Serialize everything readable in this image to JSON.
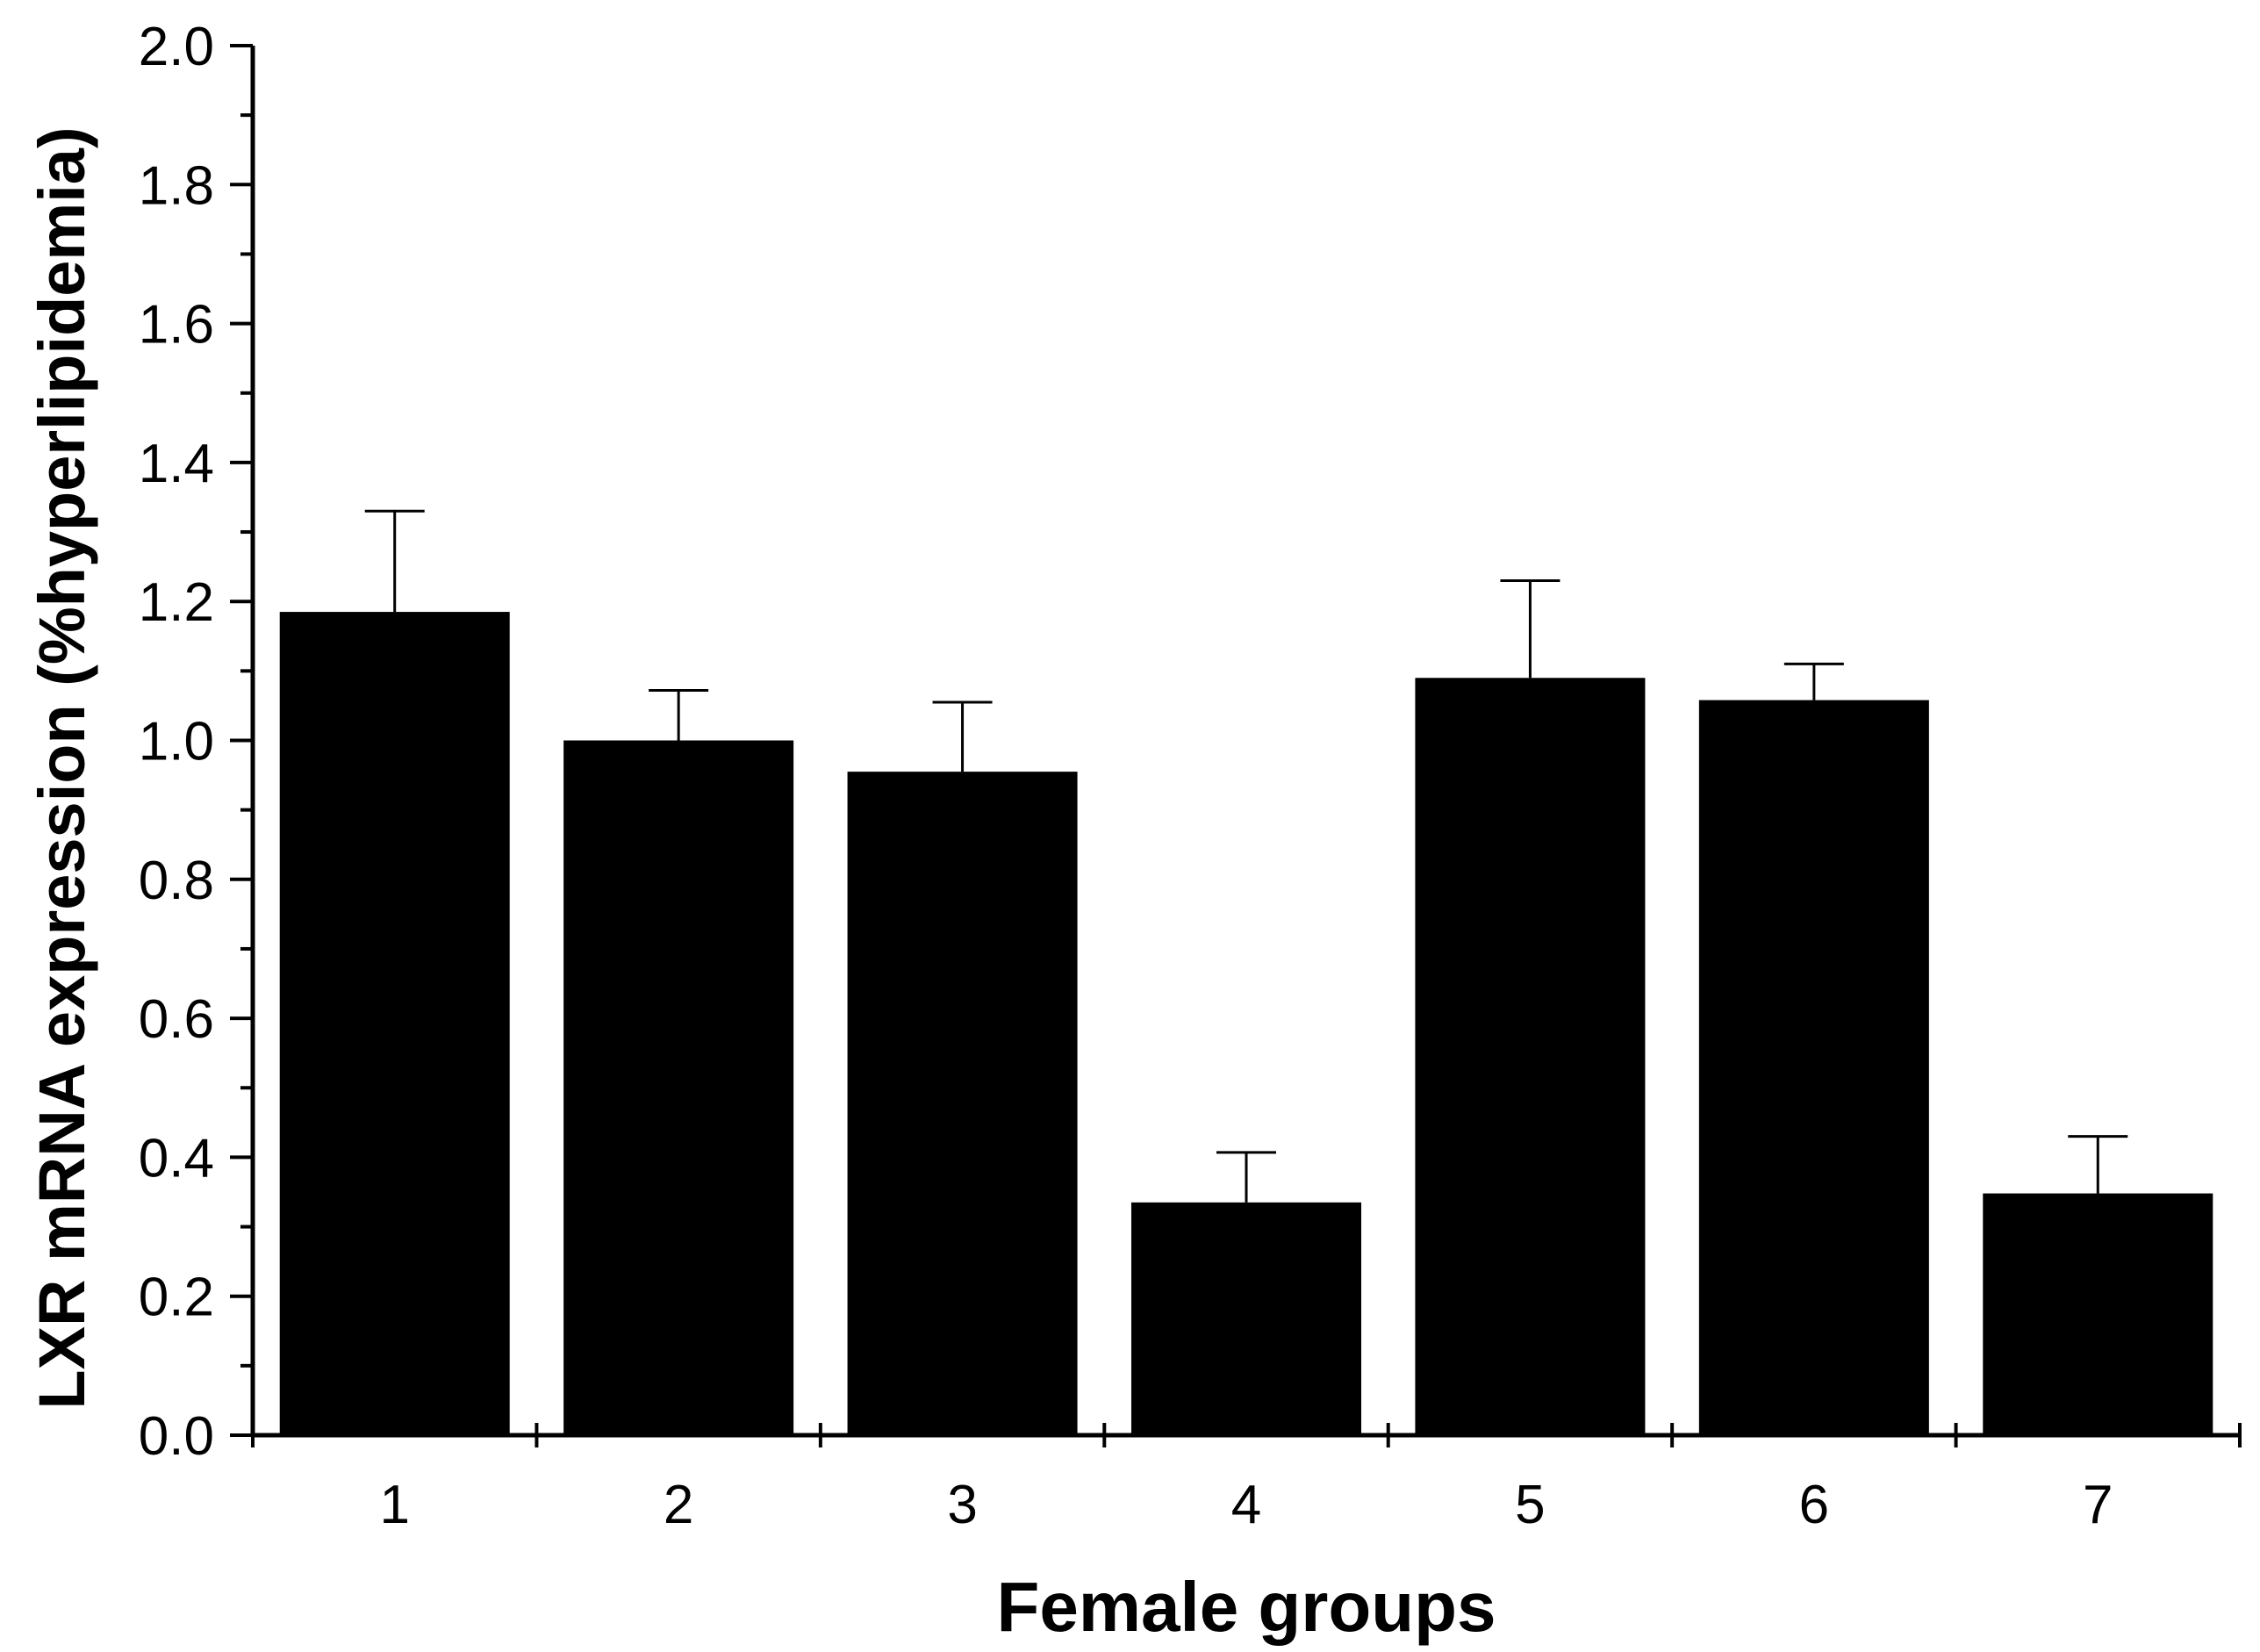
{
  "chart_data": {
    "type": "bar",
    "title": "",
    "xlabel": "Female groups",
    "ylabel": "LXR mRNA expression (%hyperlipidemia)",
    "categories": [
      "1",
      "2",
      "3",
      "4",
      "5",
      "6",
      "7"
    ],
    "values": [
      1.185,
      1.0,
      0.955,
      0.335,
      1.09,
      1.058,
      0.348
    ],
    "errors": [
      0.145,
      0.072,
      0.1,
      0.072,
      0.14,
      0.052,
      0.082
    ],
    "ylim": [
      0,
      2.0
    ],
    "yticks": [
      "0.0",
      "0.2",
      "0.4",
      "0.6",
      "0.8",
      "1.0",
      "1.2",
      "1.4",
      "1.6",
      "1.8",
      "2.0"
    ],
    "minor_ytick_step": 0.1,
    "grid": false,
    "legend": "none",
    "bar_color": "#000000",
    "axis_color": "#000000"
  }
}
